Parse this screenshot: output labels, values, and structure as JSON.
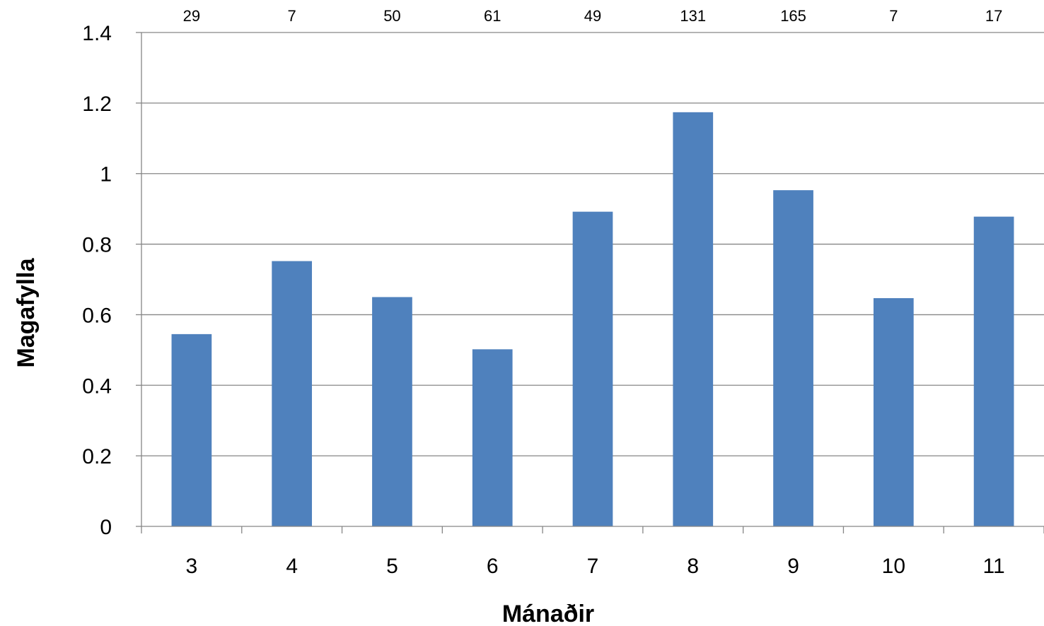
{
  "chart_data": {
    "type": "bar",
    "categories": [
      "3",
      "4",
      "5",
      "6",
      "7",
      "8",
      "9",
      "10",
      "11"
    ],
    "values": [
      0.545,
      0.752,
      0.65,
      0.502,
      0.892,
      1.174,
      0.953,
      0.647,
      0.878
    ],
    "counts": [
      "29",
      "7",
      "50",
      "61",
      "49",
      "131",
      "165",
      "7",
      "17"
    ],
    "xlabel": "Mánaðir",
    "ylabel": "Magafylla",
    "ylim": [
      0,
      1.4
    ],
    "yticks": [
      "0",
      "0.2",
      "0.4",
      "0.6",
      "0.8",
      "1",
      "1.2",
      "1.4"
    ],
    "grid": true,
    "legend": "none",
    "bar_color": "#4F81BD"
  }
}
